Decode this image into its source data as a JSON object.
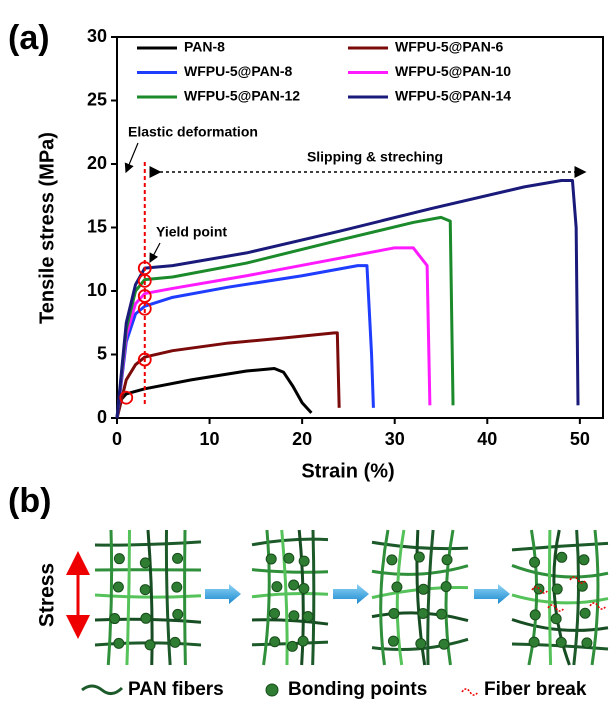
{
  "chart_data": {
    "type": "line",
    "panel_label": "(a)",
    "xlabel": "Strain (%)",
    "ylabel": "Tensile stress (MPa)",
    "xlim": [
      0,
      52.5
    ],
    "ylim": [
      0,
      30
    ],
    "xticks": [
      0,
      10,
      20,
      30,
      40,
      50
    ],
    "yticks": [
      0,
      5,
      10,
      15,
      20,
      25,
      30
    ],
    "series": [
      {
        "name": "PAN-8",
        "color": "#000000",
        "x": [
          0,
          0.5,
          1,
          3,
          8,
          14,
          17,
          18,
          19,
          20,
          21
        ],
        "values": [
          0,
          1.5,
          1.9,
          2.3,
          3,
          3.7,
          3.9,
          3.6,
          2.5,
          1.2,
          0.4
        ]
      },
      {
        "name": "WFPU-5@PAN-6",
        "color": "#7b0a0a",
        "x": [
          0,
          1,
          2,
          3,
          6,
          12,
          18,
          23.5,
          23.8,
          24
        ],
        "values": [
          0,
          3,
          4.2,
          4.8,
          5.3,
          5.9,
          6.3,
          6.7,
          6.7,
          0.8
        ]
      },
      {
        "name": "WFPU-5@PAN-8",
        "color": "#1f3dff",
        "x": [
          0,
          1,
          2,
          3,
          6,
          12,
          20,
          26,
          27,
          27.5,
          27.7
        ],
        "values": [
          0,
          6,
          8.2,
          8.8,
          9.5,
          10.3,
          11.2,
          12,
          12,
          5,
          0.8
        ]
      },
      {
        "name": "WFPU-5@PAN-10",
        "color": "#ff1aff",
        "x": [
          0,
          1,
          2,
          3,
          6,
          14,
          22,
          30,
          32,
          33.5,
          33.8
        ],
        "values": [
          0,
          6.5,
          9,
          9.8,
          10.2,
          11.2,
          12.3,
          13.4,
          13.4,
          12,
          1
        ]
      },
      {
        "name": "WFPU-5@PAN-12",
        "color": "#1a8a2a",
        "x": [
          0,
          1,
          2,
          3,
          6,
          14,
          24,
          32,
          35,
          36,
          36.3
        ],
        "values": [
          0,
          7,
          10,
          10.9,
          11.1,
          12.2,
          14,
          15.4,
          15.8,
          15.5,
          1
        ]
      },
      {
        "name": "WFPU-5@PAN-14",
        "color": "#1a1a7a",
        "x": [
          0,
          1,
          2,
          3,
          6,
          14,
          24,
          34,
          44,
          48,
          49.2,
          49.6,
          49.8
        ],
        "values": [
          0,
          7.5,
          10.5,
          11.8,
          12,
          13,
          14.7,
          16.5,
          18.2,
          18.7,
          18.7,
          15,
          1
        ]
      }
    ],
    "yield_points": {
      "x": [
        1,
        3,
        3,
        3,
        3,
        3
      ],
      "y": [
        1.6,
        4.6,
        8.6,
        9.6,
        10.8,
        11.8
      ]
    },
    "annotations": [
      "Elastic deformation",
      "Yield point",
      "Slipping & streching"
    ]
  },
  "diagram": {
    "panel_label": "(b)",
    "stress_label": "Stress",
    "legend": [
      "PAN fibers",
      "Bonding points",
      "Fiber break"
    ]
  }
}
